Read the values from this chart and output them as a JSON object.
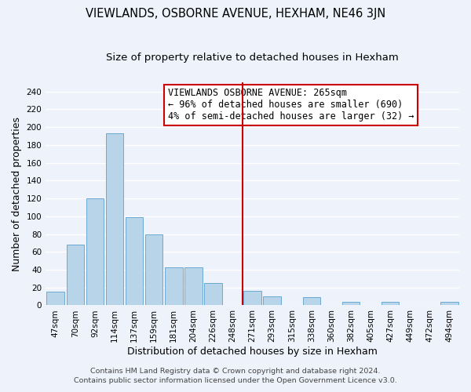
{
  "title": "VIEWLANDS, OSBORNE AVENUE, HEXHAM, NE46 3JN",
  "subtitle": "Size of property relative to detached houses in Hexham",
  "xlabel": "Distribution of detached houses by size in Hexham",
  "ylabel": "Number of detached properties",
  "bar_labels": [
    "47sqm",
    "70sqm",
    "92sqm",
    "114sqm",
    "137sqm",
    "159sqm",
    "181sqm",
    "204sqm",
    "226sqm",
    "248sqm",
    "271sqm",
    "293sqm",
    "315sqm",
    "338sqm",
    "360sqm",
    "382sqm",
    "405sqm",
    "427sqm",
    "449sqm",
    "472sqm",
    "494sqm"
  ],
  "bar_values": [
    15,
    68,
    120,
    193,
    99,
    80,
    43,
    43,
    25,
    0,
    16,
    10,
    0,
    9,
    0,
    4,
    0,
    4,
    0,
    0,
    4
  ],
  "bar_color": "#b8d4e8",
  "bar_edge_color": "#6aaad4",
  "vline_x_index": 10,
  "vline_color": "#cc0000",
  "annotation_title": "VIEWLANDS OSBORNE AVENUE: 265sqm",
  "annotation_line1": "← 96% of detached houses are smaller (690)",
  "annotation_line2": "4% of semi-detached houses are larger (32) →",
  "annotation_box_edge_color": "#cc0000",
  "ylim": [
    0,
    250
  ],
  "yticks": [
    0,
    20,
    40,
    60,
    80,
    100,
    120,
    140,
    160,
    180,
    200,
    220,
    240
  ],
  "footer1": "Contains HM Land Registry data © Crown copyright and database right 2024.",
  "footer2": "Contains public sector information licensed under the Open Government Licence v3.0.",
  "background_color": "#eef2fb",
  "grid_color": "#ffffff",
  "title_fontsize": 10.5,
  "subtitle_fontsize": 9.5,
  "axis_label_fontsize": 9,
  "tick_fontsize": 7.5,
  "footer_fontsize": 6.8,
  "annotation_fontsize": 8.5
}
